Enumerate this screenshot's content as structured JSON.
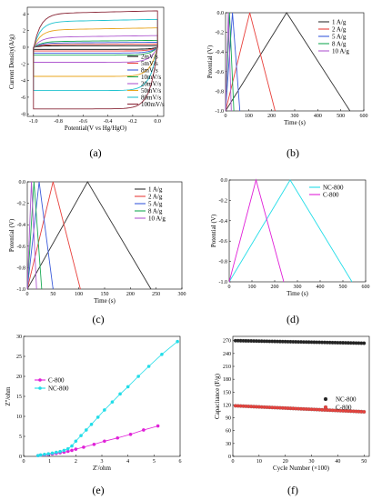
{
  "chart_data": [
    {
      "id": "a",
      "label": "(a)",
      "type": "line",
      "xlabel": "Potential(V vs Hg/HgO)",
      "ylabel": "Current Density(A/g)",
      "xlim": [
        -1.05,
        0.05
      ],
      "ylim": [
        -8.3,
        4.8
      ],
      "xticks": [
        -1.0,
        -0.8,
        -0.6,
        -0.4,
        -0.2,
        0.0
      ],
      "yticks": [
        4,
        2,
        0,
        -2,
        -4,
        -6,
        -8
      ],
      "legend_position": "bottom-right",
      "series": [
        {
          "name": "2mV/s",
          "color": "#000000",
          "upper": 0.18,
          "lower": -0.25
        },
        {
          "name": "5mV/s",
          "color": "#e8413c",
          "upper": 0.35,
          "lower": -0.45
        },
        {
          "name": "8mV/s",
          "color": "#3b5bdb",
          "upper": 0.55,
          "lower": -0.7
        },
        {
          "name": "10mV/s",
          "color": "#1aaa55",
          "upper": 0.75,
          "lower": -0.95
        },
        {
          "name": "20mV/s",
          "color": "#b05ad0",
          "upper": 1.3,
          "lower": -1.8
        },
        {
          "name": "50mV/s",
          "color": "#e8a51e",
          "upper": 2.2,
          "lower": -3.5
        },
        {
          "name": "80mV/s",
          "color": "#22c3cf",
          "upper": 3.2,
          "lower": -5.2
        },
        {
          "name": "100mV/s",
          "color": "#8b2a3a",
          "upper": 4.2,
          "lower": -7.4
        }
      ]
    },
    {
      "id": "b",
      "label": "(b)",
      "type": "line",
      "xlabel": "Time (s)",
      "ylabel": "Potential (V)",
      "xlim": [
        0,
        600
      ],
      "ylim": [
        -1.0,
        0.0
      ],
      "xticks": [
        0,
        100,
        200,
        300,
        400,
        500,
        600
      ],
      "yticks": [
        0.0,
        -0.2,
        -0.4,
        -0.6,
        -0.8,
        -1.0
      ],
      "legend_position": "top-right",
      "series": [
        {
          "name": "1  A/g",
          "color": "#333333",
          "peak": 265,
          "end": 540
        },
        {
          "name": "2  A/g",
          "color": "#e8413c",
          "peak": 105,
          "end": 215
        },
        {
          "name": "5  A/g",
          "color": "#3b5bdb",
          "peak": 30,
          "end": 62
        },
        {
          "name": "8  A/g",
          "color": "#1aaa55",
          "peak": 17,
          "end": 36
        },
        {
          "name": "10  A/g",
          "color": "#b05ad0",
          "peak": 12,
          "end": 25
        }
      ]
    },
    {
      "id": "c",
      "label": "(c)",
      "type": "line",
      "xlabel": "Time (s)",
      "ylabel": "Potential (V)",
      "xlim": [
        0,
        300
      ],
      "ylim": [
        -1.0,
        0.0
      ],
      "xticks": [
        0,
        50,
        100,
        150,
        200,
        250,
        300
      ],
      "yticks": [
        0.0,
        -0.2,
        -0.4,
        -0.6,
        -0.8,
        -1.0
      ],
      "legend_position": "top-right",
      "series": [
        {
          "name": "1  A/g",
          "color": "#333333",
          "peak": 117,
          "end": 240
        },
        {
          "name": "2  A/g",
          "color": "#e8413c",
          "peak": 50,
          "end": 103
        },
        {
          "name": "5  A/g",
          "color": "#3b5bdb",
          "peak": 23,
          "end": 50
        },
        {
          "name": "8  A/g",
          "color": "#1aaa55",
          "peak": 13,
          "end": 28
        },
        {
          "name": "10  A/g",
          "color": "#b05ad0",
          "peak": 8,
          "end": 18
        }
      ]
    },
    {
      "id": "d",
      "label": "(d)",
      "type": "line",
      "xlabel": "Time (s)",
      "ylabel": "Potential (V)",
      "xlim": [
        0,
        600
      ],
      "ylim": [
        -1.0,
        0.0
      ],
      "xticks": [
        0,
        100,
        200,
        300,
        400,
        500,
        600
      ],
      "yticks": [
        0.0,
        -0.2,
        -0.4,
        -0.6,
        -0.8,
        -1.0
      ],
      "legend_position": "top-right",
      "series": [
        {
          "name": "NC-800",
          "color": "#22dde8",
          "peak": 268,
          "end": 540
        },
        {
          "name": "C-800",
          "color": "#e020d8",
          "peak": 118,
          "end": 240
        }
      ]
    },
    {
      "id": "e",
      "label": "(e)",
      "type": "scatter",
      "xlabel": "Z'/ohm",
      "ylabel": "Z''/ohm",
      "xlim": [
        0,
        6
      ],
      "ylim": [
        0,
        30
      ],
      "xticks": [
        0,
        1,
        2,
        3,
        4,
        5,
        6
      ],
      "yticks": [
        0,
        5,
        10,
        15,
        20,
        25,
        30
      ],
      "legend_position": "middle-left",
      "series": [
        {
          "name": "C-800",
          "color": "#e020d8",
          "x": [
            0.55,
            0.65,
            0.8,
            0.95,
            1.1,
            1.25,
            1.4,
            1.55,
            1.7,
            1.85,
            2.0,
            2.3,
            2.7,
            3.1,
            3.6,
            4.1,
            4.6,
            5.15
          ],
          "y": [
            0.2,
            0.3,
            0.4,
            0.5,
            0.6,
            0.75,
            0.9,
            1.05,
            1.25,
            1.5,
            1.8,
            2.3,
            3.0,
            3.8,
            4.6,
            5.5,
            6.6,
            7.6
          ]
        },
        {
          "name": "NC-800",
          "color": "#22dde8",
          "x": [
            0.55,
            0.65,
            0.8,
            0.95,
            1.1,
            1.25,
            1.4,
            1.55,
            1.7,
            1.85,
            2.0,
            2.2,
            2.4,
            2.6,
            2.85,
            3.1,
            3.4,
            3.7,
            4.0,
            4.4,
            4.8,
            5.3,
            5.9
          ],
          "y": [
            0.2,
            0.35,
            0.5,
            0.65,
            0.8,
            1.0,
            1.2,
            1.5,
            1.9,
            2.6,
            3.8,
            5.2,
            6.6,
            8.0,
            9.8,
            11.6,
            13.6,
            15.6,
            17.4,
            20.0,
            22.5,
            25.5,
            28.7
          ]
        }
      ]
    },
    {
      "id": "f",
      "label": "(f)",
      "type": "scatter",
      "xlabel": "Cycle Number (×100)",
      "ylabel": "Capacitance (F/g)",
      "xlim": [
        0,
        52
      ],
      "ylim": [
        0,
        280
      ],
      "xticks": [
        0,
        10,
        20,
        30,
        40,
        50
      ],
      "yticks": [
        0,
        30,
        60,
        90,
        120,
        150,
        180,
        210,
        240,
        270
      ],
      "legend_position": "center-right",
      "series": [
        {
          "name": "NC-800",
          "color": "#222222",
          "start": 270,
          "end": 264,
          "count": 50
        },
        {
          "name": "C-800",
          "color": "#e8413c",
          "start": 118,
          "end": 104,
          "count": 50
        }
      ]
    }
  ]
}
